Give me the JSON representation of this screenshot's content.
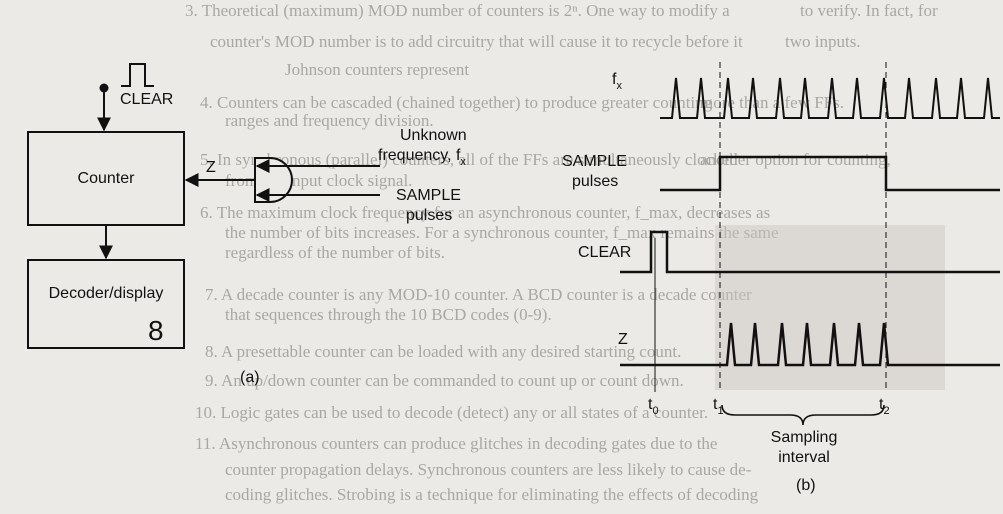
{
  "figure_a": {
    "clear_label": "CLEAR",
    "counter_label": "Counter",
    "decoder_label": "Decoder/display",
    "display_digit": "8",
    "z_label": "Z",
    "unknown_line1": "Unknown",
    "unknown_line2": "frequency, f",
    "unknown_sub": "x",
    "sample_line1": "SAMPLE",
    "sample_line2": "pulses",
    "caption": "(a)"
  },
  "figure_b": {
    "fx_label": "f",
    "fx_sub": "x",
    "sample_line1": "SAMPLE",
    "sample_line2": "pulses",
    "clear_label": "CLEAR",
    "z_label": "Z",
    "t0": "t",
    "t0_sub": "0",
    "t1": "t",
    "t1_sub": "1",
    "t2": "t",
    "t2_sub": "2",
    "interval_line1": "Sampling",
    "interval_line2": "interval",
    "caption": "(b)"
  },
  "background_text": [
    "3. Theoretical (maximum) MOD number of counters is 2ⁿ. One way to modify a",
    "counter's MOD number is to add circuitry that will cause it to recycle before it",
    "4. Counters can be cascaded (chained together) to produce greater counting",
    "ranges and frequency division.",
    "5. In synchronous (parallel) counters, all of the FFs are simultaneously clocked",
    "from the input clock signal.",
    "6. The maximum clock frequency for an asynchronous counter, f_max, decreases as",
    "the number of bits increases. For a synchronous counter, f_max remains the same",
    "regardless of the number of bits.",
    "7. A decade counter is any MOD-10 counter. A BCD counter is a decade counter",
    "that sequences through the 10 BCD codes (0-9).",
    "8. A presettable counter can be loaded with any desired starting count.",
    "9. An up/down counter can be commanded to count up or count down.",
    "10. Logic gates can be used to decode (detect) any or all states of a counter.",
    "11. Asynchronous counters can produce glitches in decoding gates due to the",
    "counter propagation delays. Synchronous counters are less likely to cause de-",
    "coding glitches. Strobing is a technique for eliminating the effects of decoding",
    "Johnson counters represent",
    "more than a few FFs.",
    "another option for counting,",
    "to verify. In fact, for",
    "two inputs."
  ]
}
